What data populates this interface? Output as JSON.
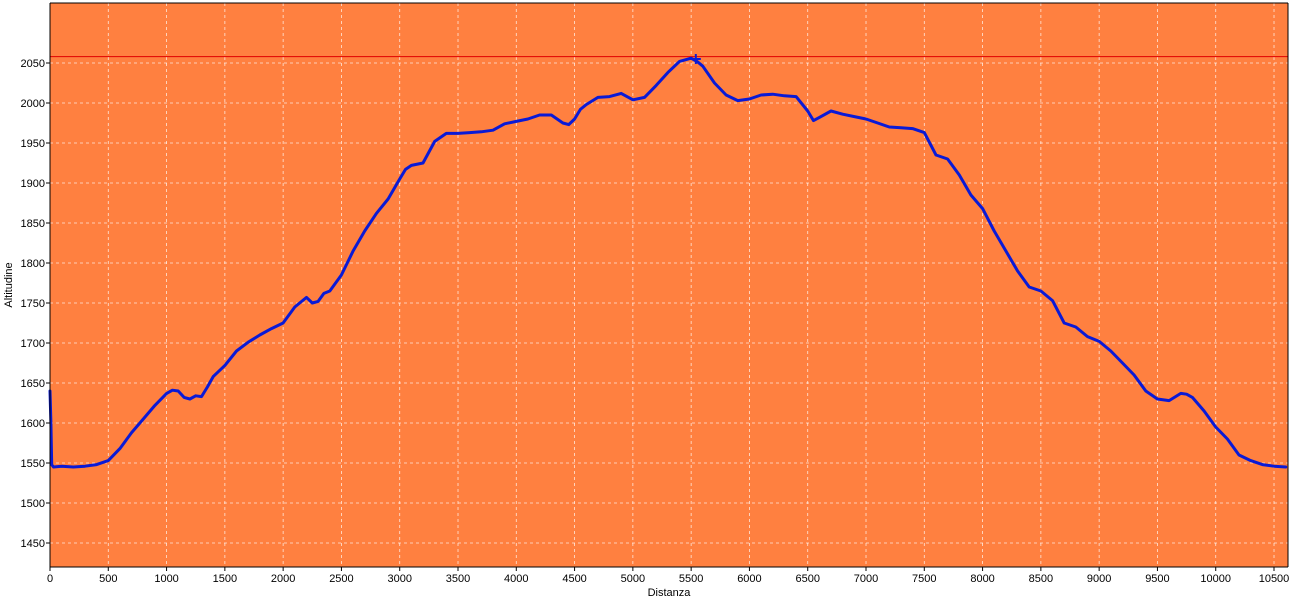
{
  "colors": {
    "plot_background": "#ff8040",
    "line": "#0a1ad6",
    "reference_line": "#e00000",
    "grid": "#ffffff",
    "text": "#000000"
  },
  "chart_data": {
    "type": "line",
    "xlabel": "Distanza",
    "ylabel": "Altitudine",
    "xlim": [
      0,
      10620
    ],
    "ylim": [
      1420,
      2125
    ],
    "x_ticks": [
      0,
      500,
      1000,
      1500,
      2000,
      2500,
      3000,
      3500,
      4000,
      4500,
      5000,
      5500,
      6000,
      6500,
      7000,
      7500,
      8000,
      8500,
      9000,
      9500,
      10000,
      10500
    ],
    "y_ticks": [
      1450,
      1500,
      1550,
      1600,
      1650,
      1700,
      1750,
      1800,
      1850,
      1900,
      1950,
      2000,
      2050
    ],
    "grid": true,
    "reference_line_y": 2058,
    "marker": {
      "x": 5540,
      "y": 2055
    },
    "series": [
      {
        "x": [
          0,
          8,
          15,
          30,
          100,
          200,
          300,
          400,
          500,
          600,
          700,
          800,
          900,
          1000,
          1050,
          1100,
          1150,
          1200,
          1250,
          1300,
          1350,
          1400,
          1500,
          1600,
          1700,
          1800,
          1900,
          2000,
          2100,
          2200,
          2250,
          2300,
          2350,
          2400,
          2500,
          2600,
          2700,
          2800,
          2900,
          3000,
          3050,
          3100,
          3200,
          3300,
          3400,
          3500,
          3600,
          3700,
          3800,
          3900,
          4000,
          4100,
          4200,
          4300,
          4400,
          4450,
          4500,
          4550,
          4600,
          4700,
          4800,
          4900,
          5000,
          5100,
          5200,
          5300,
          5400,
          5500,
          5550,
          5600,
          5700,
          5800,
          5900,
          6000,
          6100,
          6200,
          6300,
          6400,
          6500,
          6550,
          6600,
          6700,
          6800,
          6900,
          7000,
          7100,
          7200,
          7300,
          7400,
          7500,
          7600,
          7700,
          7800,
          7900,
          8000,
          8100,
          8200,
          8300,
          8400,
          8500,
          8600,
          8700,
          8800,
          8900,
          9000,
          9100,
          9200,
          9300,
          9400,
          9500,
          9600,
          9700,
          9750,
          9800,
          9900,
          10000,
          10100,
          10200,
          10300,
          10400,
          10500,
          10600
        ],
        "y": [
          1640,
          1600,
          1548,
          1545,
          1546,
          1545,
          1546,
          1548,
          1553,
          1568,
          1588,
          1605,
          1622,
          1637,
          1641,
          1640,
          1632,
          1630,
          1634,
          1633,
          1645,
          1658,
          1672,
          1690,
          1701,
          1710,
          1718,
          1725,
          1745,
          1757,
          1750,
          1752,
          1762,
          1765,
          1785,
          1815,
          1840,
          1862,
          1880,
          1905,
          1917,
          1922,
          1925,
          1952,
          1962,
          1962,
          1963,
          1964,
          1966,
          1974,
          1977,
          1980,
          1985,
          1985,
          1975,
          1973,
          1980,
          1992,
          1998,
          2007,
          2008,
          2012,
          2004,
          2007,
          2022,
          2038,
          2052,
          2056,
          2052,
          2046,
          2025,
          2010,
          2003,
          2005,
          2010,
          2011,
          2009,
          2008,
          1990,
          1978,
          1982,
          1990,
          1986,
          1983,
          1980,
          1975,
          1970,
          1969,
          1968,
          1963,
          1935,
          1930,
          1910,
          1885,
          1868,
          1840,
          1815,
          1790,
          1770,
          1765,
          1753,
          1725,
          1720,
          1708,
          1702,
          1690,
          1675,
          1660,
          1640,
          1630,
          1628,
          1637,
          1636,
          1632,
          1615,
          1595,
          1580,
          1560,
          1553,
          1548,
          1546,
          1545
        ]
      }
    ]
  }
}
